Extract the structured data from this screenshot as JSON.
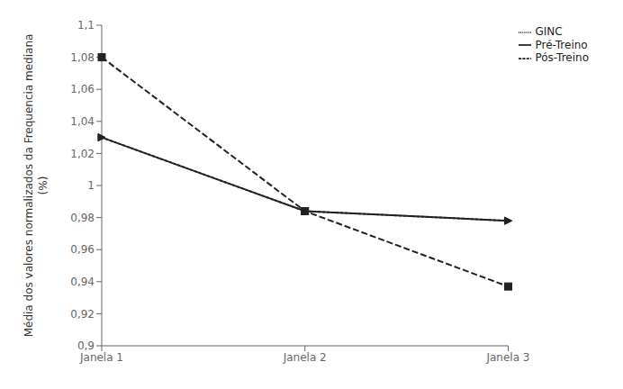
{
  "chart_data": {
    "type": "line",
    "categories": [
      "Janela 1",
      "Janela 2",
      "Janela 3"
    ],
    "y_label": [
      "Média dos valores normalizados da Frequencia mediana",
      "(%)"
    ],
    "series": [
      {
        "name": "Pré-Treino",
        "color": "#222222",
        "marker": "triangle-right",
        "line_style": "solid",
        "values": [
          1.03,
          0.984,
          0.978
        ]
      },
      {
        "name": "Pós-Treino",
        "color": "#222222",
        "marker": "square",
        "line_style": "dashed",
        "values": [
          1.08,
          0.984,
          0.937
        ]
      },
      {
        "name": "GINC",
        "color": "#222222",
        "marker": "triangle-right",
        "line_style": "dotted",
        "values": [
          1.03,
          0.984,
          0.978
        ]
      }
    ],
    "ylim": [
      0.9,
      1.1
    ],
    "yticks": [
      {
        "value": 0.9,
        "label": "0,9"
      },
      {
        "value": 0.92,
        "label": "0,92"
      },
      {
        "value": 0.94,
        "label": "0,94"
      },
      {
        "value": 0.96,
        "label": "0,96"
      },
      {
        "value": 0.98,
        "label": "0,98"
      },
      1,
      {
        "value": 1.02,
        "label": "1,02"
      },
      {
        "value": 1.04,
        "label": "1,04"
      },
      {
        "value": 1.06,
        "label": "1,06"
      },
      {
        "value": 1.08,
        "label": "1,08"
      },
      {
        "value": 1.1,
        "label": "1,1"
      }
    ],
    "grid": false,
    "legend": "upper right"
  }
}
